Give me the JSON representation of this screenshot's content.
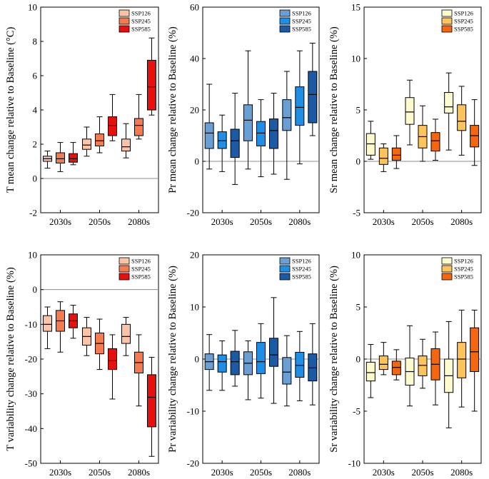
{
  "figure": {
    "legend_labels": [
      "SSP126",
      "SSP245",
      "SSP585"
    ],
    "periods": [
      "2030s",
      "2050s",
      "2080s"
    ]
  },
  "chart_data": [
    {
      "type": "box",
      "id": "t-mean",
      "ylabel": "T mean change relative to Baseline (°C)",
      "ylim": [
        -2,
        10
      ],
      "yticks": [
        -2,
        0,
        2,
        4,
        6,
        8,
        10
      ],
      "reference_line": 0,
      "categories": [
        "2030s",
        "2050s",
        "2080s"
      ],
      "colors": [
        "#fbc4a6",
        "#f47b4f",
        "#e8100f"
      ],
      "series": [
        {
          "name": "SSP126",
          "boxes": [
            {
              "min": 0.6,
              "q1": 1.0,
              "median": 1.15,
              "q3": 1.3,
              "max": 1.6
            },
            {
              "min": 1.3,
              "q1": 1.7,
              "median": 1.95,
              "q3": 2.3,
              "max": 3.0
            },
            {
              "min": 1.2,
              "q1": 1.6,
              "median": 1.85,
              "q3": 2.3,
              "max": 3.2
            }
          ]
        },
        {
          "name": "SSP245",
          "boxes": [
            {
              "min": 0.4,
              "q1": 0.9,
              "median": 1.15,
              "q3": 1.5,
              "max": 2.1
            },
            {
              "min": 1.5,
              "q1": 1.9,
              "median": 2.2,
              "q3": 2.6,
              "max": 3.6
            },
            {
              "min": 2.3,
              "q1": 2.5,
              "median": 3.1,
              "q3": 3.5,
              "max": 4.9
            }
          ]
        },
        {
          "name": "SSP585",
          "boxes": [
            {
              "min": 0.8,
              "q1": 0.95,
              "median": 1.15,
              "q3": 1.45,
              "max": 2.1
            },
            {
              "min": 2.2,
              "q1": 2.5,
              "median": 3.1,
              "q3": 3.6,
              "max": 4.9
            },
            {
              "min": 3.7,
              "q1": 4.0,
              "median": 5.35,
              "q3": 6.9,
              "max": 8.2
            }
          ]
        }
      ]
    },
    {
      "type": "box",
      "id": "pr-mean",
      "ylabel": "Pr mean change relative to Baseline (%)",
      "ylim": [
        -20,
        60
      ],
      "yticks": [
        -20,
        0,
        20,
        40,
        60
      ],
      "reference_line": 0,
      "categories": [
        "2030s",
        "2050s",
        "2080s"
      ],
      "colors": [
        "#6a9fd4",
        "#1f8fe6",
        "#1c5ba4"
      ],
      "series": [
        {
          "name": "SSP126",
          "boxes": [
            {
              "min": -3,
              "q1": 5,
              "median": 11,
              "q3": 15,
              "max": 30
            },
            {
              "min": -3,
              "q1": 8,
              "median": 16,
              "q3": 22,
              "max": 43
            },
            {
              "min": -7,
              "q1": 12,
              "median": 17,
              "q3": 24,
              "max": 35
            }
          ]
        },
        {
          "name": "SSP245",
          "boxes": [
            {
              "min": -4,
              "q1": 5,
              "median": 8,
              "q3": 11.5,
              "max": 18
            },
            {
              "min": -6,
              "q1": 6,
              "median": 11,
              "q3": 15.5,
              "max": 24
            },
            {
              "min": -1,
              "q1": 14,
              "median": 21,
              "q3": 29,
              "max": 43
            }
          ]
        },
        {
          "name": "SSP585",
          "boxes": [
            {
              "min": -9,
              "q1": 1.5,
              "median": 8,
              "q3": 12.5,
              "max": 26.5
            },
            {
              "min": -5,
              "q1": 5,
              "median": 12,
              "q3": 16.5,
              "max": 26.5
            },
            {
              "min": 10,
              "q1": 15,
              "median": 26,
              "q3": 35,
              "max": 46
            }
          ]
        }
      ]
    },
    {
      "type": "box",
      "id": "sr-mean",
      "ylabel": "Sr mean change relative to Baseline (%)",
      "ylim": [
        -5,
        15
      ],
      "yticks": [
        -5,
        0,
        5,
        10,
        15
      ],
      "reference_line": 0,
      "categories": [
        "2030s",
        "2050s",
        "2080s"
      ],
      "colors": [
        "#fefbce",
        "#fdc45c",
        "#f5660f"
      ],
      "series": [
        {
          "name": "SSP126",
          "boxes": [
            {
              "min": 0.2,
              "q1": 0.6,
              "median": 1.7,
              "q3": 2.7,
              "max": 3.9
            },
            {
              "min": 1.6,
              "q1": 3.6,
              "median": 4.8,
              "q3": 6.2,
              "max": 7.9
            },
            {
              "min": 1.1,
              "q1": 4.7,
              "median": 5.3,
              "q3": 6.7,
              "max": 8.6
            }
          ]
        },
        {
          "name": "SSP245",
          "boxes": [
            {
              "min": -1.0,
              "q1": -0.3,
              "median": 0.3,
              "q3": 1.3,
              "max": 1.7
            },
            {
              "min": 0.0,
              "q1": 1.3,
              "median": 2.4,
              "q3": 3.5,
              "max": 5.4
            },
            {
              "min": 0.6,
              "q1": 3.0,
              "median": 3.9,
              "q3": 5.5,
              "max": 7.3
            }
          ]
        },
        {
          "name": "SSP585",
          "boxes": [
            {
              "min": -0.7,
              "q1": 0.1,
              "median": 0.6,
              "q3": 1.3,
              "max": 2.5
            },
            {
              "min": 0.1,
              "q1": 1.0,
              "median": 2.0,
              "q3": 2.8,
              "max": 4.1
            },
            {
              "min": -0.4,
              "q1": 1.4,
              "median": 2.5,
              "q3": 3.5,
              "max": 6.0
            }
          ]
        }
      ]
    },
    {
      "type": "box",
      "id": "t-var",
      "ylabel": "T variability change relative to Baseline (%)",
      "ylim": [
        -50,
        10
      ],
      "yticks": [
        -50,
        -40,
        -30,
        -20,
        -10,
        0,
        10
      ],
      "reference_line": 0,
      "categories": [
        "2030s",
        "2050s",
        "2080s"
      ],
      "colors": [
        "#fbc4a6",
        "#f47b4f",
        "#e8100f"
      ],
      "series": [
        {
          "name": "SSP126",
          "boxes": [
            {
              "min": -17,
              "q1": -12,
              "median": -10,
              "q3": -7.5,
              "max": -5
            },
            {
              "min": -19,
              "q1": -16,
              "median": -13.5,
              "q3": -11,
              "max": -8
            },
            {
              "min": -19,
              "q1": -15.5,
              "median": -13.5,
              "q3": -10,
              "max": -8
            }
          ]
        },
        {
          "name": "SSP245",
          "boxes": [
            {
              "min": -18,
              "q1": -12,
              "median": -9,
              "q3": -6,
              "max": -3.5
            },
            {
              "min": -23,
              "q1": -18.5,
              "median": -15.5,
              "q3": -12.5,
              "max": -8.5
            },
            {
              "min": -33.5,
              "q1": -24,
              "median": -21,
              "q3": -18,
              "max": -13
            }
          ]
        },
        {
          "name": "SSP585",
          "boxes": [
            {
              "min": -14,
              "q1": -11,
              "median": -9,
              "q3": -7,
              "max": -4.5
            },
            {
              "min": -31.5,
              "q1": -23,
              "median": -20.5,
              "q3": -17,
              "max": -13
            },
            {
              "min": -48,
              "q1": -39.5,
              "median": -31,
              "q3": -24.5,
              "max": -19.5
            }
          ]
        }
      ]
    },
    {
      "type": "box",
      "id": "pr-var",
      "ylabel": "Pr variability change relative to Baseline (%)",
      "ylim": [
        -20,
        20
      ],
      "yticks": [
        -20,
        -10,
        0,
        10,
        20
      ],
      "reference_line": 0,
      "categories": [
        "2030s",
        "2050s",
        "2080s"
      ],
      "colors": [
        "#6a9fd4",
        "#1f8fe6",
        "#1c5ba4"
      ],
      "series": [
        {
          "name": "SSP126",
          "boxes": [
            {
              "min": -6,
              "q1": -2,
              "median": -0.5,
              "q3": 1,
              "max": 4.7
            },
            {
              "min": -7.8,
              "q1": -3,
              "median": -0.8,
              "q3": 1.4,
              "max": 3.5
            },
            {
              "min": -9,
              "q1": -4.8,
              "median": -2.5,
              "q3": 0.3,
              "max": 4.5
            }
          ]
        },
        {
          "name": "SSP245",
          "boxes": [
            {
              "min": -6,
              "q1": -2.5,
              "median": -0.5,
              "q3": 0.8,
              "max": 3.5
            },
            {
              "min": -7.5,
              "q1": -2.8,
              "median": -0.5,
              "q3": 3.2,
              "max": 6.8
            },
            {
              "min": -8,
              "q1": -3.5,
              "median": -1.2,
              "q3": 1.3,
              "max": 5.3
            }
          ]
        },
        {
          "name": "SSP585",
          "boxes": [
            {
              "min": -5.2,
              "q1": -3,
              "median": -0.5,
              "q3": 1.5,
              "max": 5.5
            },
            {
              "min": -8.5,
              "q1": -1.4,
              "median": 0.8,
              "q3": 4,
              "max": 11.8
            },
            {
              "min": -8.8,
              "q1": -4.2,
              "median": -1.7,
              "q3": 1,
              "max": 6.8
            }
          ]
        }
      ]
    },
    {
      "type": "box",
      "id": "sr-var",
      "ylabel": "Sr variability change relative to Baseline (%)",
      "ylim": [
        -10,
        10
      ],
      "yticks": [
        -10,
        -5,
        0,
        5,
        10
      ],
      "reference_line": 0,
      "categories": [
        "2030s",
        "2050s",
        "2080s"
      ],
      "colors": [
        "#fefbce",
        "#fdc45c",
        "#f5660f"
      ],
      "series": [
        {
          "name": "SSP126",
          "boxes": [
            {
              "min": -3.7,
              "q1": -2.1,
              "median": -1.3,
              "q3": -0.3,
              "max": 1.4
            },
            {
              "min": -4.5,
              "q1": -2.5,
              "median": -1.2,
              "q3": 0.1,
              "max": 3.2
            },
            {
              "min": -6.6,
              "q1": -3.2,
              "median": -1.6,
              "q3": 0.0,
              "max": 3.6
            }
          ]
        },
        {
          "name": "SSP245",
          "boxes": [
            {
              "min": -1.5,
              "q1": -1.0,
              "median": -0.5,
              "q3": 0.3,
              "max": 1.6
            },
            {
              "min": -2.8,
              "q1": -1.6,
              "median": -0.6,
              "q3": 0.3,
              "max": 1.9
            },
            {
              "min": -4.6,
              "q1": -1.8,
              "median": 0.0,
              "q3": 1.6,
              "max": 4.7
            }
          ]
        },
        {
          "name": "SSP585",
          "boxes": [
            {
              "min": -2.0,
              "q1": -1.5,
              "median": -0.8,
              "q3": -0.2,
              "max": 0.9
            },
            {
              "min": -4.4,
              "q1": -2.0,
              "median": -0.5,
              "q3": 1.0,
              "max": 2.6
            },
            {
              "min": -5.0,
              "q1": -1.2,
              "median": 0.7,
              "q3": 3.0,
              "max": 4.7
            }
          ]
        }
      ]
    }
  ]
}
